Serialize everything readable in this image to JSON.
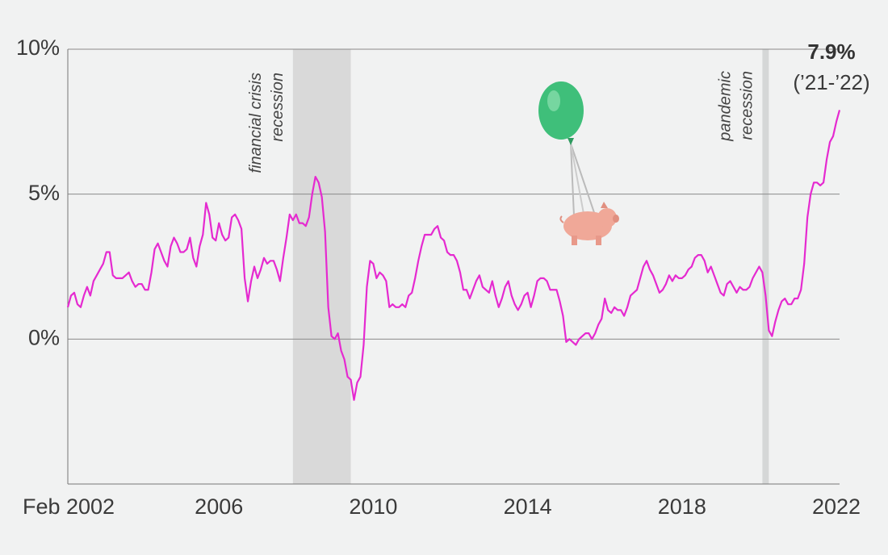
{
  "chart_data": {
    "type": "line",
    "annotations": {
      "value": "7.9%",
      "period": "(’21-’22)"
    },
    "recessions": [
      {
        "label": [
          "financial crisis",
          "recession"
        ],
        "start": "2007-12",
        "end": "2009-06"
      },
      {
        "label": [
          "pandemic",
          "recession"
        ],
        "start": "2020-02",
        "end": "2020-04"
      }
    ],
    "xlim": [
      "2002-02",
      "2022-02"
    ],
    "xticks": [
      {
        "value": "2002-02",
        "label": "Feb 2002"
      },
      {
        "value": "2006-01",
        "label": "2006"
      },
      {
        "value": "2010-01",
        "label": "2010"
      },
      {
        "value": "2014-01",
        "label": "2014"
      },
      {
        "value": "2018-01",
        "label": "2018"
      },
      {
        "value": "2022-01",
        "label": "2022"
      }
    ],
    "ylim": [
      -5,
      10
    ],
    "yticks": [
      {
        "value": 0,
        "label": "0%"
      },
      {
        "value": 5,
        "label": "5%"
      },
      {
        "value": 10,
        "label": "10%"
      }
    ],
    "grid": true,
    "series": [
      {
        "color": "#e52ad0",
        "x": [
          "2002-02",
          "2002-03",
          "2002-04",
          "2002-05",
          "2002-06",
          "2002-07",
          "2002-08",
          "2002-09",
          "2002-10",
          "2002-11",
          "2002-12",
          "2003-01",
          "2003-02",
          "2003-03",
          "2003-04",
          "2003-05",
          "2003-06",
          "2003-07",
          "2003-08",
          "2003-09",
          "2003-10",
          "2003-11",
          "2003-12",
          "2004-01",
          "2004-02",
          "2004-03",
          "2004-04",
          "2004-05",
          "2004-06",
          "2004-07",
          "2004-08",
          "2004-09",
          "2004-10",
          "2004-11",
          "2004-12",
          "2005-01",
          "2005-02",
          "2005-03",
          "2005-04",
          "2005-05",
          "2005-06",
          "2005-07",
          "2005-08",
          "2005-09",
          "2005-10",
          "2005-11",
          "2005-12",
          "2006-01",
          "2006-02",
          "2006-03",
          "2006-04",
          "2006-05",
          "2006-06",
          "2006-07",
          "2006-08",
          "2006-09",
          "2006-10",
          "2006-11",
          "2006-12",
          "2007-01",
          "2007-02",
          "2007-03",
          "2007-04",
          "2007-05",
          "2007-06",
          "2007-07",
          "2007-08",
          "2007-09",
          "2007-10",
          "2007-11",
          "2007-12",
          "2008-01",
          "2008-02",
          "2008-03",
          "2008-04",
          "2008-05",
          "2008-06",
          "2008-07",
          "2008-08",
          "2008-09",
          "2008-10",
          "2008-11",
          "2008-12",
          "2009-01",
          "2009-02",
          "2009-03",
          "2009-04",
          "2009-05",
          "2009-06",
          "2009-07",
          "2009-08",
          "2009-09",
          "2009-10",
          "2009-11",
          "2009-12",
          "2010-01",
          "2010-02",
          "2010-03",
          "2010-04",
          "2010-05",
          "2010-06",
          "2010-07",
          "2010-08",
          "2010-09",
          "2010-10",
          "2010-11",
          "2010-12",
          "2011-01",
          "2011-02",
          "2011-03",
          "2011-04",
          "2011-05",
          "2011-06",
          "2011-07",
          "2011-08",
          "2011-09",
          "2011-10",
          "2011-11",
          "2011-12",
          "2012-01",
          "2012-02",
          "2012-03",
          "2012-04",
          "2012-05",
          "2012-06",
          "2012-07",
          "2012-08",
          "2012-09",
          "2012-10",
          "2012-11",
          "2012-12",
          "2013-01",
          "2013-02",
          "2013-03",
          "2013-04",
          "2013-05",
          "2013-06",
          "2013-07",
          "2013-08",
          "2013-09",
          "2013-10",
          "2013-11",
          "2013-12",
          "2014-01",
          "2014-02",
          "2014-03",
          "2014-04",
          "2014-05",
          "2014-06",
          "2014-07",
          "2014-08",
          "2014-09",
          "2014-10",
          "2014-11",
          "2014-12",
          "2015-01",
          "2015-02",
          "2015-03",
          "2015-04",
          "2015-05",
          "2015-06",
          "2015-07",
          "2015-08",
          "2015-09",
          "2015-10",
          "2015-11",
          "2015-12",
          "2016-01",
          "2016-02",
          "2016-03",
          "2016-04",
          "2016-05",
          "2016-06",
          "2016-07",
          "2016-08",
          "2016-09",
          "2016-10",
          "2016-11",
          "2016-12",
          "2017-01",
          "2017-02",
          "2017-03",
          "2017-04",
          "2017-05",
          "2017-06",
          "2017-07",
          "2017-08",
          "2017-09",
          "2017-10",
          "2017-11",
          "2017-12",
          "2018-01",
          "2018-02",
          "2018-03",
          "2018-04",
          "2018-05",
          "2018-06",
          "2018-07",
          "2018-08",
          "2018-09",
          "2018-10",
          "2018-11",
          "2018-12",
          "2019-01",
          "2019-02",
          "2019-03",
          "2019-04",
          "2019-05",
          "2019-06",
          "2019-07",
          "2019-08",
          "2019-09",
          "2019-10",
          "2019-11",
          "2019-12",
          "2020-01",
          "2020-02",
          "2020-03",
          "2020-04",
          "2020-05",
          "2020-06",
          "2020-07",
          "2020-08",
          "2020-09",
          "2020-10",
          "2020-11",
          "2020-12",
          "2021-01",
          "2021-02",
          "2021-03",
          "2021-04",
          "2021-05",
          "2021-06",
          "2021-07",
          "2021-08",
          "2021-09",
          "2021-10",
          "2021-11",
          "2021-12",
          "2022-01",
          "2022-02"
        ],
        "values": [
          1.1,
          1.5,
          1.6,
          1.2,
          1.1,
          1.5,
          1.8,
          1.5,
          2.0,
          2.2,
          2.4,
          2.6,
          3.0,
          3.0,
          2.2,
          2.1,
          2.1,
          2.1,
          2.2,
          2.3,
          2.0,
          1.8,
          1.9,
          1.9,
          1.7,
          1.7,
          2.3,
          3.1,
          3.3,
          3.0,
          2.7,
          2.5,
          3.2,
          3.5,
          3.3,
          3.0,
          3.0,
          3.1,
          3.5,
          2.8,
          2.5,
          3.2,
          3.6,
          4.7,
          4.3,
          3.5,
          3.4,
          4.0,
          3.6,
          3.4,
          3.5,
          4.2,
          4.3,
          4.1,
          3.8,
          2.1,
          1.3,
          2.0,
          2.5,
          2.1,
          2.4,
          2.8,
          2.6,
          2.7,
          2.7,
          2.4,
          2.0,
          2.8,
          3.5,
          4.3,
          4.1,
          4.3,
          4.0,
          4.0,
          3.9,
          4.2,
          5.0,
          5.6,
          5.4,
          4.9,
          3.7,
          1.1,
          0.1,
          0.0,
          0.2,
          -0.4,
          -0.7,
          -1.3,
          -1.4,
          -2.1,
          -1.5,
          -1.3,
          -0.2,
          1.8,
          2.7,
          2.6,
          2.1,
          2.3,
          2.2,
          2.0,
          1.1,
          1.2,
          1.1,
          1.1,
          1.2,
          1.1,
          1.5,
          1.6,
          2.1,
          2.7,
          3.2,
          3.6,
          3.6,
          3.6,
          3.8,
          3.9,
          3.5,
          3.4,
          3.0,
          2.9,
          2.9,
          2.7,
          2.3,
          1.7,
          1.7,
          1.4,
          1.7,
          2.0,
          2.2,
          1.8,
          1.7,
          1.6,
          2.0,
          1.5,
          1.1,
          1.4,
          1.8,
          2.0,
          1.5,
          1.2,
          1.0,
          1.2,
          1.5,
          1.6,
          1.1,
          1.5,
          2.0,
          2.1,
          2.1,
          2.0,
          1.7,
          1.7,
          1.7,
          1.3,
          0.8,
          -0.1,
          0.0,
          -0.1,
          -0.2,
          0.0,
          0.1,
          0.2,
          0.2,
          0.0,
          0.2,
          0.5,
          0.7,
          1.4,
          1.0,
          0.9,
          1.1,
          1.0,
          1.0,
          0.8,
          1.1,
          1.5,
          1.6,
          1.7,
          2.1,
          2.5,
          2.7,
          2.4,
          2.2,
          1.9,
          1.6,
          1.7,
          1.9,
          2.2,
          2.0,
          2.2,
          2.1,
          2.1,
          2.2,
          2.4,
          2.5,
          2.8,
          2.9,
          2.9,
          2.7,
          2.3,
          2.5,
          2.2,
          1.9,
          1.6,
          1.5,
          1.9,
          2.0,
          1.8,
          1.6,
          1.8,
          1.7,
          1.7,
          1.8,
          2.1,
          2.3,
          2.5,
          2.3,
          1.5,
          0.3,
          0.1,
          0.6,
          1.0,
          1.3,
          1.4,
          1.2,
          1.2,
          1.4,
          1.4,
          1.7,
          2.6,
          4.2,
          5.0,
          5.4,
          5.4,
          5.3,
          5.4,
          6.2,
          6.8,
          7.0,
          7.5,
          7.9
        ]
      }
    ]
  }
}
